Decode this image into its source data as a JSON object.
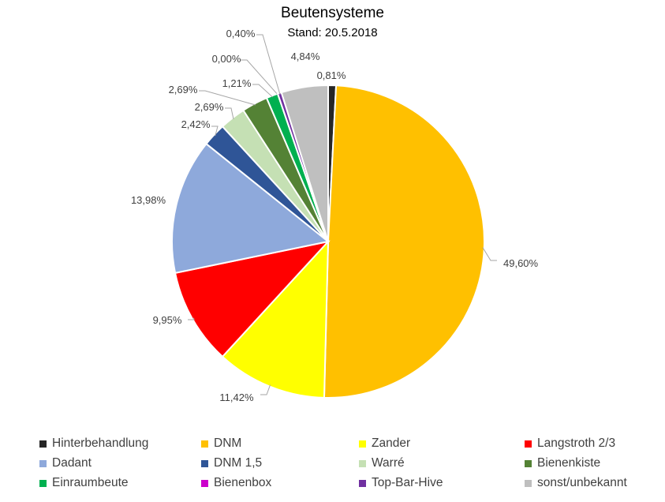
{
  "chart_data": {
    "type": "pie",
    "title": "Beutensysteme",
    "subtitle": "Stand: 20.5.2018",
    "legend_position": "bottom",
    "slices": [
      {
        "name": "Hinterbehandlung",
        "value": 0.81,
        "label": "0,81%",
        "color": "#262626"
      },
      {
        "name": "DNM",
        "value": 49.6,
        "label": "49,60%",
        "color": "#FFC000"
      },
      {
        "name": "Zander",
        "value": 11.42,
        "label": "11,42%",
        "color": "#FFFF00"
      },
      {
        "name": "Langstroth 2/3",
        "value": 9.95,
        "label": "9,95%",
        "color": "#FF0000"
      },
      {
        "name": "Dadant",
        "value": 13.98,
        "label": "13,98%",
        "color": "#8EA9DB"
      },
      {
        "name": "DNM 1,5",
        "value": 2.42,
        "label": "2,42%",
        "color": "#2F5597"
      },
      {
        "name": "Warré",
        "value": 2.69,
        "label": "2,69%",
        "color": "#C5E0B4"
      },
      {
        "name": "Bienenkiste",
        "value": 2.69,
        "label": "2,69%",
        "color": "#548235"
      },
      {
        "name": "Einraumbeute",
        "value": 1.21,
        "label": "1,21%",
        "color": "#00B050"
      },
      {
        "name": "Bienenbox",
        "value": 0.0,
        "label": "0,00%",
        "color": "#CC00CC"
      },
      {
        "name": "Top-Bar-Hive",
        "value": 0.4,
        "label": "0,40%",
        "color": "#7030A0"
      },
      {
        "name": "sonst/unbekannt",
        "value": 4.84,
        "label": "4,84%",
        "color": "#BFBFBF"
      }
    ]
  }
}
